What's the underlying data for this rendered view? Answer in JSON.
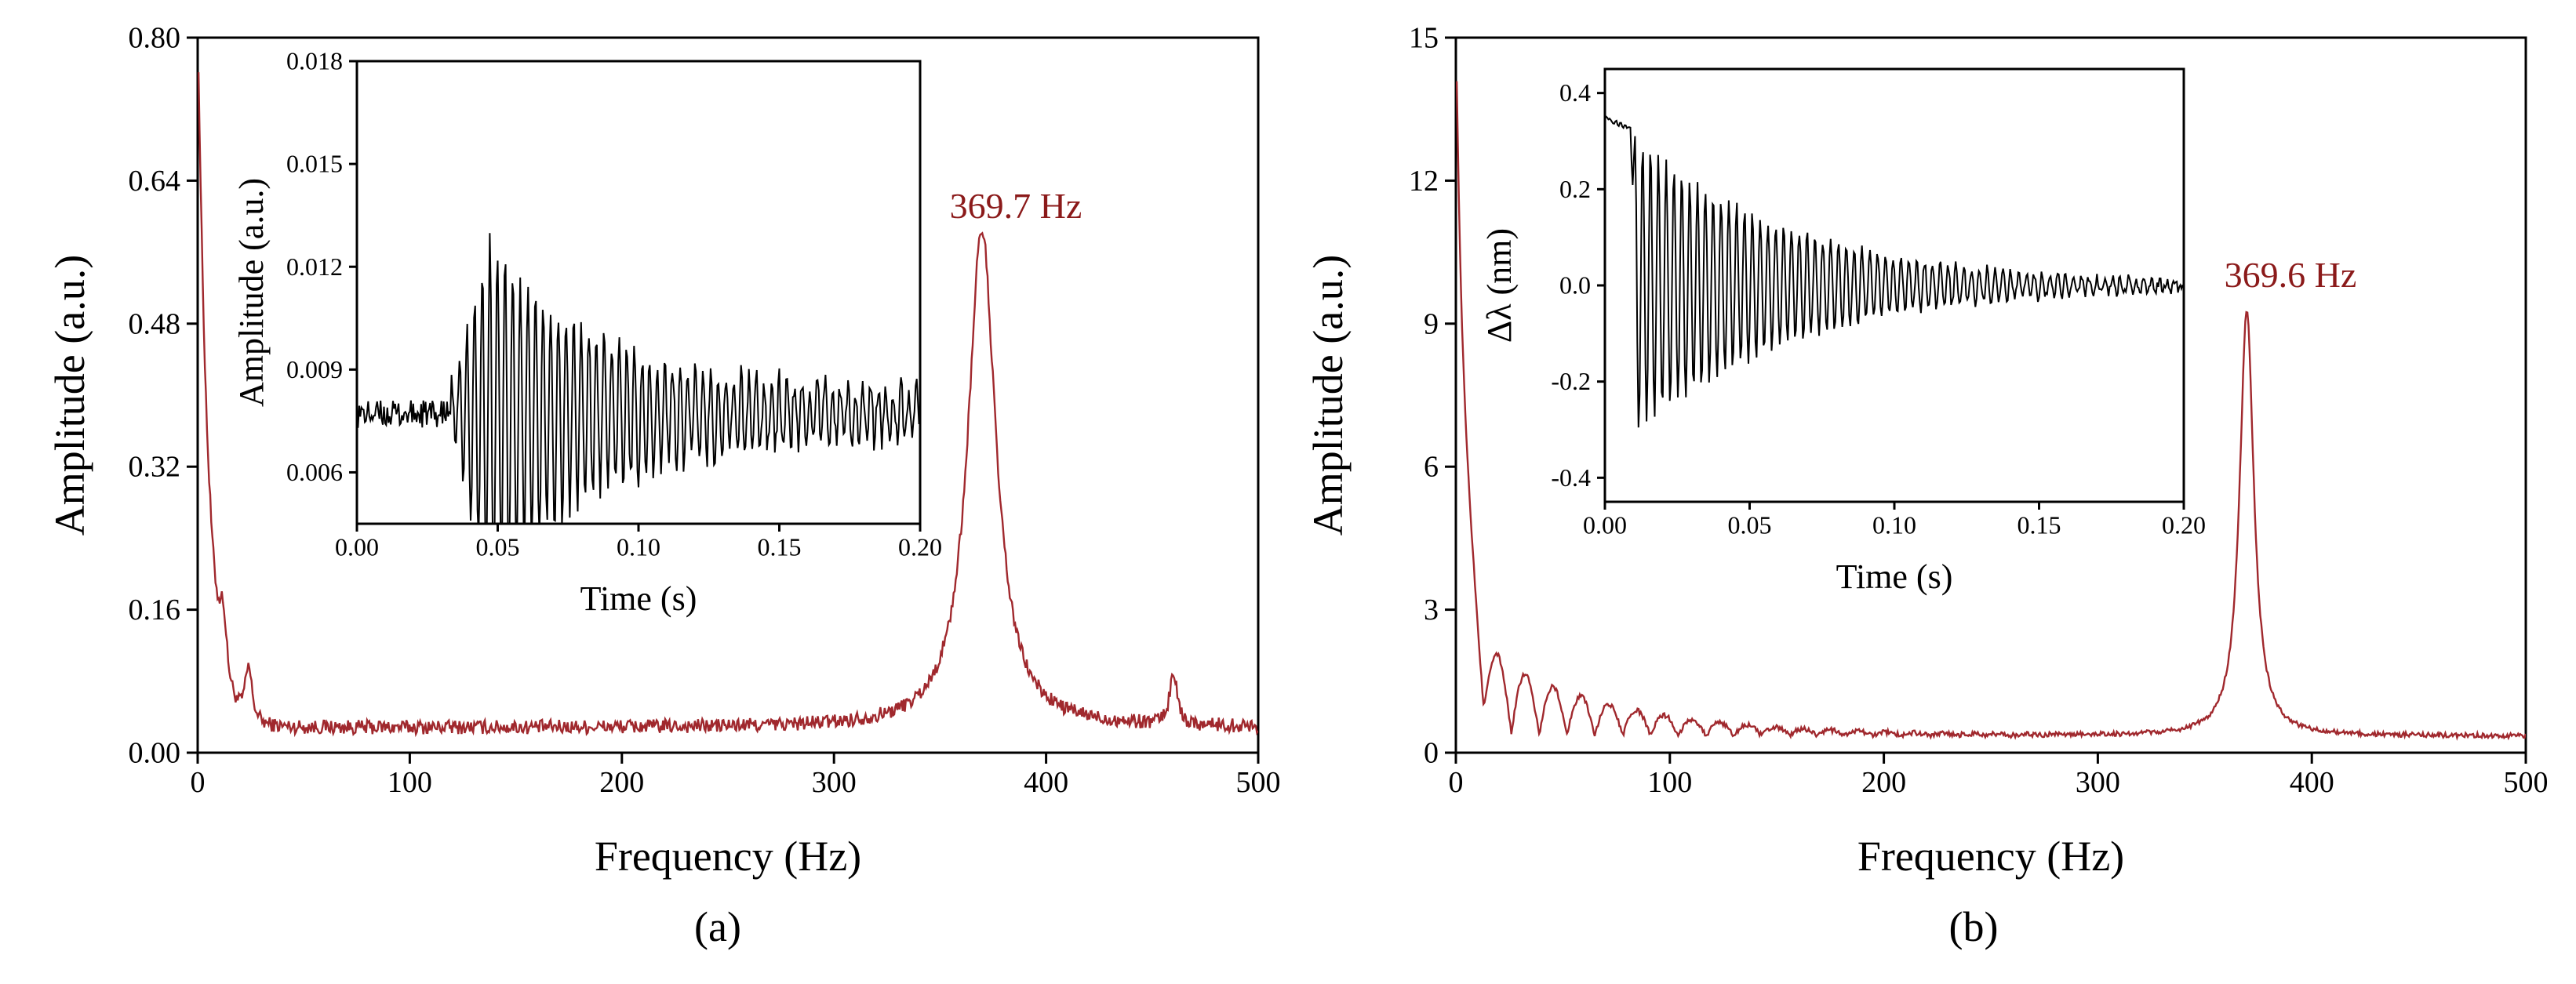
{
  "colors": {
    "spectrum": "#a0282d",
    "inset": "#000000",
    "annotation": "#8b1a1a"
  },
  "chart_data": [
    {
      "id": "a",
      "type": "line",
      "panel_label": "(a)",
      "xlabel": "Frequency (Hz)",
      "ylabel": "Amplitude (a.u.)",
      "xlim": [
        0,
        500
      ],
      "ylim": [
        0,
        0.8
      ],
      "xticks": [
        0,
        100,
        200,
        300,
        400,
        500
      ],
      "yticks": [
        0.0,
        0.16,
        0.32,
        0.48,
        0.64,
        0.8
      ],
      "ytick_labels": [
        "0.00",
        "0.16",
        "0.32",
        "0.48",
        "0.64",
        "0.80"
      ],
      "peak": {
        "frequency": 369.7,
        "amplitude": 0.585,
        "label": "369.7 Hz",
        "half_width": 8
      },
      "baseline": 0.028,
      "low_freq_decay": {
        "start_amplitude": 0.8,
        "tau": 5
      },
      "small_peaks": [
        [
          12,
          0.07
        ],
        [
          24,
          0.06
        ],
        [
          460,
          0.06
        ]
      ],
      "noise": 0.008,
      "inset": {
        "type": "line",
        "xlabel": "Time (s)",
        "ylabel": "Amplitude (a.u.)",
        "xlim": [
          0,
          0.2
        ],
        "ylim": [
          0.0045,
          0.018
        ],
        "xticks": [
          0,
          0.05,
          0.1,
          0.15,
          0.2
        ],
        "xtick_labels": [
          "0.00",
          "0.05",
          "0.10",
          "0.15",
          "0.20"
        ],
        "yticks": [
          0.006,
          0.009,
          0.012,
          0.015,
          0.018
        ],
        "ytick_labels": [
          "0.006",
          "0.009",
          "0.012",
          "0.015",
          "0.018"
        ],
        "signal": {
          "baseline": 0.0077,
          "onset": 0.033,
          "initial_amplitude": 0.0045,
          "peak_time": 0.047,
          "decay_tau": 0.04,
          "frequency": 369.7,
          "noise": 0.0004
        }
      }
    },
    {
      "id": "b",
      "type": "line",
      "panel_label": "(b)",
      "xlabel": "Frequency (Hz)",
      "ylabel": "Amplitude (a.u.)",
      "xlim": [
        0,
        500
      ],
      "ylim": [
        0,
        15
      ],
      "xticks": [
        0,
        100,
        200,
        300,
        400,
        500
      ],
      "yticks": [
        0,
        3,
        6,
        9,
        12,
        15
      ],
      "ytick_labels": [
        "0",
        "3",
        "6",
        "9",
        "12",
        "15"
      ],
      "peak": {
        "frequency": 369.6,
        "amplitude": 9.3,
        "label": "369.6 Hz",
        "half_width": 4
      },
      "baseline": 0.35,
      "low_freq_decay": {
        "start_amplitude": 15,
        "tau": 4
      },
      "ripple": {
        "period": 13,
        "amplitude": 2.2,
        "tau": 60
      },
      "noise": 0.05,
      "inset": {
        "type": "line",
        "xlabel": "Time (s)",
        "ylabel": "Δλ (nm)",
        "xlim": [
          0,
          0.2
        ],
        "ylim": [
          -0.45,
          0.45
        ],
        "xticks": [
          0,
          0.05,
          0.1,
          0.15,
          0.2
        ],
        "xtick_labels": [
          "0.00",
          "0.05",
          "0.10",
          "0.15",
          "0.20"
        ],
        "yticks": [
          -0.4,
          -0.2,
          0.0,
          0.2,
          0.4
        ],
        "ytick_labels": [
          "-0.4",
          "-0.2",
          "0.0",
          "0.2",
          "0.4"
        ],
        "signal": {
          "start_level": 0.35,
          "onset": 0.009,
          "initial_amplitude": 0.32,
          "decay_tau": 0.055,
          "frequency": 369.6,
          "noise": 0.01
        }
      }
    }
  ]
}
